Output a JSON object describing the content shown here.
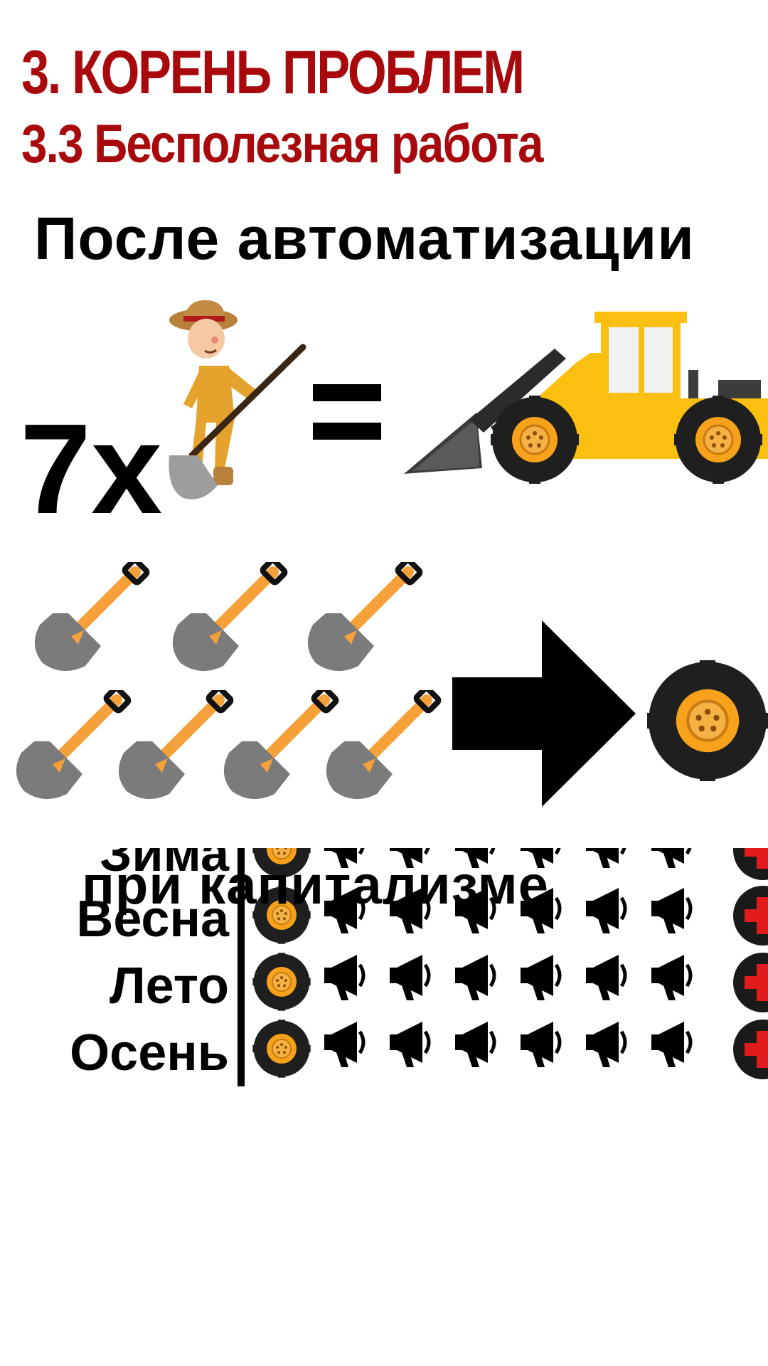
{
  "header": {
    "title": "3. КОРЕНЬ ПРОБЛЕМ",
    "subtitle": "3.3 Бесполезная работа"
  },
  "section": {
    "heading": "После автоматизации"
  },
  "equation": {
    "multiplier": "7х",
    "equals_sign": "="
  },
  "shovel_count": 7,
  "table": {
    "overlay_label": "при капитализме",
    "rows": [
      {
        "label": "Зима"
      },
      {
        "label": "Весна"
      },
      {
        "label": "Лето"
      },
      {
        "label": "Осень"
      }
    ],
    "horns_per_row": 6
  },
  "colors": {
    "title_red": "#a8090c",
    "loader_yellow": "#fbbf0f",
    "wheel_orange": "#f7a21a",
    "shovel_gray": "#7b7b7b",
    "handle_orange": "#f6a03a",
    "cross_red": "#e11b1b"
  },
  "icons": [
    "farmer-with-shovel-icon",
    "wheel-loader-icon",
    "shovel-icon",
    "arrow-right-icon",
    "wheel-icon",
    "megaphone-icon",
    "red-cross-icon"
  ]
}
